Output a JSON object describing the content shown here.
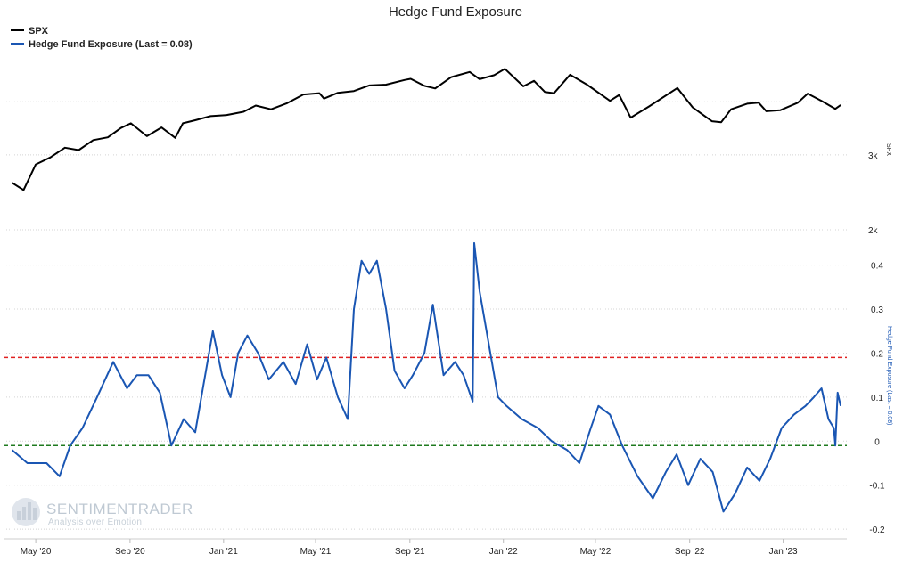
{
  "chart_data": {
    "type": "line",
    "title": "Hedge Fund Exposure",
    "legend": [
      {
        "label": "SPX",
        "color": "#000000"
      },
      {
        "label": "Hedge Fund Exposure (Last = 0.08)",
        "color": "#1a56b3"
      }
    ],
    "x_ticks": [
      "May '20",
      "Sep '20",
      "Jan '21",
      "May '21",
      "Sep '21",
      "Jan '22",
      "May '22",
      "Sep '22",
      "Jan '23"
    ],
    "panels": [
      {
        "name": "SPX",
        "ylabel": "SPX",
        "scale": "log",
        "ylim": [
          2000,
          5000
        ],
        "y_ticks": [
          "3k",
          "2k"
        ],
        "color": "#000000",
        "series": [
          {
            "name": "SPX",
            "x": [
              "2020-03-31",
              "2020-04-15",
              "2020-05-01",
              "2020-05-20",
              "2020-06-08",
              "2020-06-26",
              "2020-07-15",
              "2020-08-03",
              "2020-08-20",
              "2020-09-02",
              "2020-09-23",
              "2020-10-12",
              "2020-10-30",
              "2020-11-09",
              "2020-11-25",
              "2020-12-15",
              "2021-01-04",
              "2021-01-27",
              "2021-02-12",
              "2021-03-04",
              "2021-03-25",
              "2021-04-15",
              "2021-05-06",
              "2021-05-12",
              "2021-05-30",
              "2021-06-20",
              "2021-07-10",
              "2021-08-01",
              "2021-08-25",
              "2021-09-02",
              "2021-09-20",
              "2021-10-04",
              "2021-10-25",
              "2021-11-18",
              "2021-12-01",
              "2021-12-20",
              "2022-01-03",
              "2022-01-27",
              "2022-02-10",
              "2022-02-24",
              "2022-03-08",
              "2022-03-29",
              "2022-04-20",
              "2022-05-20",
              "2022-06-01",
              "2022-06-16",
              "2022-07-10",
              "2022-08-16",
              "2022-09-05",
              "2022-09-30",
              "2022-10-12",
              "2022-10-25",
              "2022-11-15",
              "2022-11-30",
              "2022-12-10",
              "2022-12-28",
              "2023-01-20",
              "2023-02-02",
              "2023-02-20",
              "2023-03-10",
              "2023-03-17"
            ],
            "values": [
              2580,
              2480,
              2850,
              2960,
              3120,
              3080,
              3250,
              3300,
              3470,
              3560,
              3320,
              3480,
              3290,
              3560,
              3620,
              3700,
              3720,
              3790,
              3920,
              3840,
              3970,
              4160,
              4190,
              4070,
              4200,
              4240,
              4370,
              4390,
              4500,
              4530,
              4360,
              4300,
              4570,
              4700,
              4520,
              4620,
              4780,
              4350,
              4480,
              4220,
              4190,
              4630,
              4390,
              4020,
              4150,
              3670,
              3900,
              4310,
              3880,
              3600,
              3580,
              3840,
              3960,
              3980,
              3800,
              3820,
              3980,
              4180,
              4020,
              3850,
              3930
            ]
          }
        ]
      },
      {
        "name": "Hedge Fund Exposure",
        "ylabel": "Hedge Fund Exposure (Last = 0.08)",
        "ylim": [
          -0.22,
          0.46
        ],
        "y_ticks": [
          "0.4",
          "0.3",
          "0.2",
          "0.1",
          "0",
          "-0.1",
          "-0.2"
        ],
        "color": "#1a56b3",
        "reference_lines": [
          {
            "value": 0.19,
            "color": "#e02020"
          },
          {
            "value": -0.01,
            "color": "#1f7a1f"
          }
        ],
        "series": [
          {
            "name": "Hedge Fund Exposure (Last = 0.08)",
            "x": [
              "2020-03-31",
              "2020-04-20",
              "2020-05-15",
              "2020-06-01",
              "2020-06-15",
              "2020-07-01",
              "2020-07-20",
              "2020-08-10",
              "2020-08-28",
              "2020-09-10",
              "2020-09-25",
              "2020-10-10",
              "2020-10-25",
              "2020-11-10",
              "2020-11-25",
              "2020-12-05",
              "2020-12-18",
              "2020-12-30",
              "2021-01-10",
              "2021-01-20",
              "2021-02-01",
              "2021-02-15",
              "2021-03-01",
              "2021-03-20",
              "2021-04-05",
              "2021-04-20",
              "2021-05-03",
              "2021-05-15",
              "2021-05-30",
              "2021-06-12",
              "2021-06-20",
              "2021-06-30",
              "2021-07-10",
              "2021-07-20",
              "2021-08-01",
              "2021-08-12",
              "2021-08-25",
              "2021-09-05",
              "2021-09-20",
              "2021-10-01",
              "2021-10-15",
              "2021-10-30",
              "2021-11-10",
              "2021-11-22",
              "2021-11-24",
              "2021-12-01",
              "2021-12-15",
              "2021-12-25",
              "2022-01-05",
              "2022-01-25",
              "2022-02-15",
              "2022-03-05",
              "2022-03-25",
              "2022-04-10",
              "2022-04-25",
              "2022-05-05",
              "2022-05-20",
              "2022-06-05",
              "2022-06-25",
              "2022-07-15",
              "2022-08-01",
              "2022-08-15",
              "2022-08-30",
              "2022-09-15",
              "2022-10-01",
              "2022-10-15",
              "2022-10-30",
              "2022-11-15",
              "2022-12-01",
              "2022-12-15",
              "2022-12-30",
              "2023-01-15",
              "2023-01-30",
              "2023-02-10",
              "2023-02-20",
              "2023-03-01",
              "2023-03-08",
              "2023-03-10",
              "2023-03-13",
              "2023-03-17"
            ],
            "values": [
              -0.02,
              -0.05,
              -0.05,
              -0.08,
              -0.01,
              0.03,
              0.1,
              0.18,
              0.12,
              0.15,
              0.15,
              0.11,
              -0.01,
              0.05,
              0.02,
              0.12,
              0.25,
              0.15,
              0.1,
              0.2,
              0.24,
              0.2,
              0.14,
              0.18,
              0.13,
              0.22,
              0.14,
              0.19,
              0.1,
              0.05,
              0.3,
              0.41,
              0.38,
              0.41,
              0.3,
              0.16,
              0.12,
              0.15,
              0.2,
              0.31,
              0.15,
              0.18,
              0.15,
              0.09,
              0.45,
              0.34,
              0.2,
              0.1,
              0.08,
              0.05,
              0.03,
              0.0,
              -0.02,
              -0.05,
              0.03,
              0.08,
              0.06,
              -0.01,
              -0.08,
              -0.13,
              -0.07,
              -0.03,
              -0.1,
              -0.04,
              -0.07,
              -0.16,
              -0.12,
              -0.06,
              -0.09,
              -0.04,
              0.03,
              0.06,
              0.08,
              0.1,
              0.12,
              0.05,
              0.03,
              -0.01,
              0.11,
              0.08
            ]
          }
        ]
      }
    ]
  },
  "watermark": {
    "name": "SENTIMENTRADER",
    "tagline": "Analysis over Emotion"
  }
}
